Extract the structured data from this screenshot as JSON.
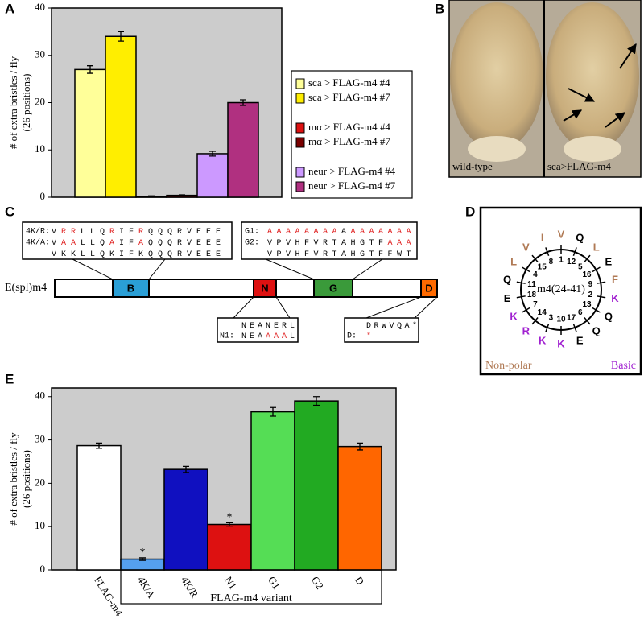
{
  "chart_data": [
    {
      "type": "bar",
      "panel": "A",
      "ylabel": [
        "# of extra bristles / fly",
        "(26 positions)"
      ],
      "series": [
        {
          "name": "sca > FLAG-m4 #4",
          "color": "#ffff99",
          "values": [
            27
          ],
          "errors": [
            0.8
          ]
        },
        {
          "name": "sca > FLAG-m4 #7",
          "color": "#ffee00",
          "values": [
            34
          ],
          "errors": [
            1
          ]
        },
        {
          "name": "mα > FLAG-m4 #4",
          "color": "#dd1111",
          "values": [
            0.2
          ],
          "errors": [
            0.1
          ]
        },
        {
          "name": "mα > FLAG-m4 #7",
          "color": "#7a0000",
          "values": [
            0.4
          ],
          "errors": [
            0.1
          ]
        },
        {
          "name": "neur > FLAG-m4 #4",
          "color": "#cc99ff",
          "values": [
            9.2
          ],
          "errors": [
            0.5
          ]
        },
        {
          "name": "neur > FLAG-m4 #7",
          "color": "#b03080",
          "values": [
            20
          ],
          "errors": [
            0.6
          ]
        }
      ],
      "ylim": [
        0,
        40
      ],
      "yticks": [
        0,
        10,
        20,
        30,
        40
      ]
    },
    {
      "type": "bar",
      "panel": "E",
      "ylabel": [
        "# of extra bristles / fly",
        "(26 positions)"
      ],
      "xlabel": "FLAG-m4 variant",
      "categories": [
        "FLAG-m4",
        "4K/A",
        "4K/R",
        "N1",
        "G1",
        "G2",
        "D"
      ],
      "values": [
        28.7,
        2.5,
        23.2,
        10.5,
        36.5,
        39,
        28.5
      ],
      "errors": [
        0.6,
        0.3,
        0.7,
        0.4,
        1,
        1,
        0.8
      ],
      "colors": [
        "#ffffff",
        "#55a0ee",
        "#1010c0",
        "#dd1111",
        "#55dd55",
        "#22aa22",
        "#ff6600"
      ],
      "annotations": [
        {
          "text": "*",
          "category": "4K/A"
        },
        {
          "text": "*",
          "category": "N1"
        }
      ],
      "ylim": [
        0,
        42
      ],
      "yticks": [
        0,
        10,
        20,
        30,
        40
      ]
    }
  ],
  "panel_b": {
    "label": "B",
    "captions": [
      "wild-type",
      "sca>FLAG-m4"
    ]
  },
  "panel_c": {
    "label": "C",
    "protein": "E(spl)m4",
    "highlight_color": "#e02020",
    "domains": [
      {
        "name": "B",
        "color": "#2a9fd6"
      },
      {
        "name": "N",
        "color": "#dd1111"
      },
      {
        "name": "G",
        "color": "#3a9a3a"
      },
      {
        "name": "D",
        "color": "#ff6a00"
      }
    ],
    "boxes": [
      {
        "rows": [
          {
            "label": "4K/R:",
            "seq": "VRRLLQRIFRQQQRVEEE"
          },
          {
            "label": "4K/A:",
            "seq": "VAALLQAIFAQQQRVEEE"
          },
          {
            "seq": "VKKLLQKIFKQQQRVEEE"
          }
        ]
      },
      {
        "rows": [
          {
            "label": "G1:",
            "seq": "AAAAAAAAAAAAAAAA"
          },
          {
            "label": "G2:",
            "seq": "VPVHFVRTAHGTFAAA"
          },
          {
            "seq": "VPVHFVRTAHGTFFWT"
          }
        ]
      },
      {
        "rows": [
          {
            "seq": "NEANERL"
          },
          {
            "label": "N1:",
            "seq": "NEAAAAL"
          }
        ]
      },
      {
        "rows": [
          {
            "seq": "DRWVQA*"
          },
          {
            "label": "D:",
            "seq": "*"
          }
        ]
      }
    ]
  },
  "panel_d": {
    "label": "D",
    "title": "m4(24-41)",
    "residues": [
      {
        "position": 1,
        "letter": "V",
        "color": "#b07a55"
      },
      {
        "position": 2,
        "letter": "K",
        "color": "#a020d0"
      },
      {
        "position": 3,
        "letter": "K",
        "color": "#a020d0"
      },
      {
        "position": 4,
        "letter": "L",
        "color": "#b07a55"
      },
      {
        "position": 5,
        "letter": "L",
        "color": "#b07a55"
      },
      {
        "position": 6,
        "letter": "Q",
        "color": "#000000"
      },
      {
        "position": 7,
        "letter": "K",
        "color": "#a020d0"
      },
      {
        "position": 8,
        "letter": "I",
        "color": "#b07a55"
      },
      {
        "position": 9,
        "letter": "F",
        "color": "#b07a55"
      },
      {
        "position": 10,
        "letter": "K",
        "color": "#a020d0"
      },
      {
        "position": 11,
        "letter": "Q",
        "color": "#000000"
      },
      {
        "position": 12,
        "letter": "Q",
        "color": "#000000"
      },
      {
        "position": 13,
        "letter": "Q",
        "color": "#000000"
      },
      {
        "position": 14,
        "letter": "R",
        "color": "#a020d0"
      },
      {
        "position": 15,
        "letter": "V",
        "color": "#b07a55"
      },
      {
        "position": 16,
        "letter": "E",
        "color": "#000000"
      },
      {
        "position": 17,
        "letter": "E",
        "color": "#000000"
      },
      {
        "position": 18,
        "letter": "E",
        "color": "#000000"
      }
    ],
    "legend": [
      {
        "text": "Non-polar",
        "color": "#b07a55"
      },
      {
        "text": "Basic",
        "color": "#a020d0"
      }
    ]
  }
}
